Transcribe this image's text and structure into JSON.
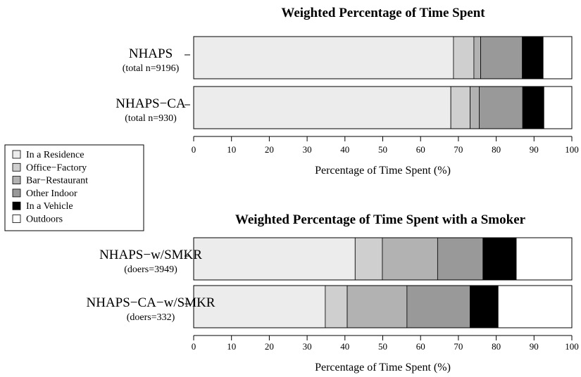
{
  "chart_data": [
    {
      "type": "bar",
      "orientation": "horizontal",
      "stacked": true,
      "title": "Weighted Percentage of Time Spent",
      "xlabel": "Percentage of Time Spent (%)",
      "xlim": [
        0,
        100
      ],
      "xticks": [
        0,
        10,
        20,
        30,
        40,
        50,
        60,
        70,
        80,
        90,
        100
      ],
      "categories": [
        {
          "label": "NHAPS",
          "sublabel": "(total n=9196)"
        },
        {
          "label": "NHAPS−CA",
          "sublabel": "(total n=930)"
        }
      ],
      "series": [
        {
          "name": "In a Residence",
          "color": "#ececec",
          "values": [
            68.7,
            68.0
          ]
        },
        {
          "name": "Office−Factory",
          "color": "#cfcfcf",
          "values": [
            5.4,
            5.1
          ]
        },
        {
          "name": "Bar−Restaurant",
          "color": "#b2b2b2",
          "values": [
            1.8,
            2.4
          ]
        },
        {
          "name": "Other Indoor",
          "color": "#999999",
          "values": [
            11.0,
            11.5
          ]
        },
        {
          "name": "In a Vehicle",
          "color": "#000000",
          "values": [
            5.5,
            5.6
          ]
        },
        {
          "name": "Outdoors",
          "color": "#ffffff",
          "values": [
            7.6,
            7.4
          ]
        }
      ]
    },
    {
      "type": "bar",
      "orientation": "horizontal",
      "stacked": true,
      "title": "Weighted Percentage of Time Spent with a Smoker",
      "xlabel": "Percentage of Time Spent (%)",
      "xlim": [
        0,
        100
      ],
      "xticks": [
        0,
        10,
        20,
        30,
        40,
        50,
        60,
        70,
        80,
        90,
        100
      ],
      "categories": [
        {
          "label": "NHAPS−w/SMKR",
          "sublabel": "(doers=3949)"
        },
        {
          "label": "NHAPS−CA−w/SMKR",
          "sublabel": "(doers=332)"
        }
      ],
      "series": [
        {
          "name": "In a Residence",
          "color": "#ececec",
          "values": [
            42.7,
            34.8
          ]
        },
        {
          "name": "Office−Factory",
          "color": "#cfcfcf",
          "values": [
            7.2,
            5.8
          ]
        },
        {
          "name": "Bar−Restaurant",
          "color": "#b2b2b2",
          "values": [
            14.6,
            15.8
          ]
        },
        {
          "name": "Other Indoor",
          "color": "#999999",
          "values": [
            12.0,
            16.7
          ]
        },
        {
          "name": "In a Vehicle",
          "color": "#000000",
          "values": [
            8.8,
            7.4
          ]
        },
        {
          "name": "Outdoors",
          "color": "#ffffff",
          "values": [
            14.7,
            19.5
          ]
        }
      ]
    }
  ],
  "legend": {
    "placement": "left",
    "items": [
      {
        "label": "In a Residence",
        "color": "#ececec"
      },
      {
        "label": "Office−Factory",
        "color": "#cfcfcf"
      },
      {
        "label": "Bar−Restaurant",
        "color": "#b2b2b2"
      },
      {
        "label": "Other Indoor",
        "color": "#999999"
      },
      {
        "label": "In a Vehicle",
        "color": "#000000"
      },
      {
        "label": "Outdoors",
        "color": "#ffffff"
      }
    ]
  }
}
